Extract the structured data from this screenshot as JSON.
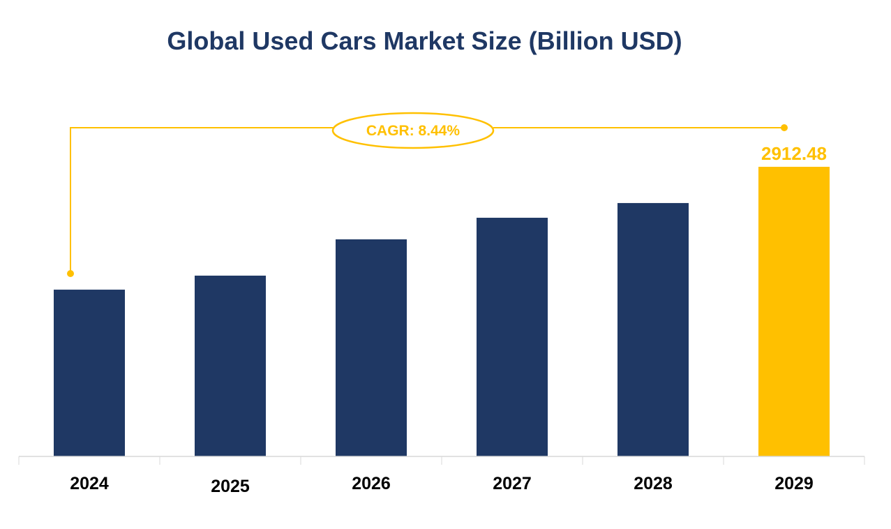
{
  "chart_data": {
    "type": "bar",
    "title": "Global Used Cars Market Size (Billion USD)",
    "categories": [
      "2024",
      "2025",
      "2026",
      "2027",
      "2028",
      "2029"
    ],
    "values": [
      1677,
      1818,
      2183,
      2400,
      2548,
      2912.48
    ],
    "data_labels": {
      "2029": "2912.48"
    },
    "annotation": "CAGR: 8.44%",
    "xlabel": "",
    "ylabel": "",
    "ylim": [
      0,
      2912.48
    ],
    "grid": false,
    "legend": "none",
    "colors": {
      "bar": "#1f3864",
      "highlight": "#ffc000",
      "title": "#1f3864"
    }
  }
}
